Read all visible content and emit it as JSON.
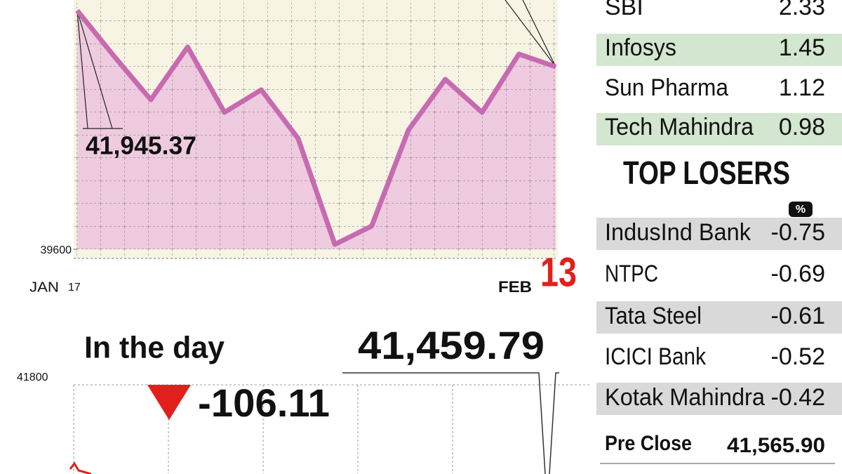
{
  "chart_data": [
    {
      "type": "line",
      "categories": [
        "17",
        null,
        null,
        null,
        null,
        null,
        null,
        null,
        null,
        null,
        null,
        null,
        null,
        "13"
      ],
      "month_labels": [
        "JAN",
        "FEB"
      ],
      "series": [
        {
          "name": null,
          "color": "#c76ab0",
          "values": [
            41945.37,
            41497,
            41069,
            41586,
            40945,
            41166,
            40690,
            39648,
            39828,
            40772,
            41269,
            40945,
            41517,
            41393
          ]
        }
      ],
      "annotation": "41,945.37",
      "ylim": [
        39600,
        42000
      ],
      "yticks": [
        39600
      ],
      "fill": "#ecc3de"
    },
    {
      "type": "line",
      "title": "In the day",
      "close": "41,459.79",
      "change": -106.11,
      "yticks": [
        41800
      ]
    }
  ],
  "top_gainers": [
    {
      "name": "SBI",
      "value": 2.33
    },
    {
      "name": "Infosys",
      "value": 1.45
    },
    {
      "name": "Sun Pharma",
      "value": 1.12
    },
    {
      "name": "Tech Mahindra",
      "value": 0.98
    }
  ],
  "top_losers": {
    "title": "TOP LOSERS",
    "unit": "%",
    "rows": [
      {
        "name": "IndusInd Bank",
        "value": -0.75
      },
      {
        "name": "NTPC",
        "value": -0.69
      },
      {
        "name": "Tata Steel",
        "value": -0.61
      },
      {
        "name": "ICICI Bank",
        "value": -0.52
      },
      {
        "name": "Kotak Mahindra",
        "value": -0.42
      }
    ]
  },
  "pre_close": {
    "label": "Pre Close",
    "value": "41,565.90"
  }
}
